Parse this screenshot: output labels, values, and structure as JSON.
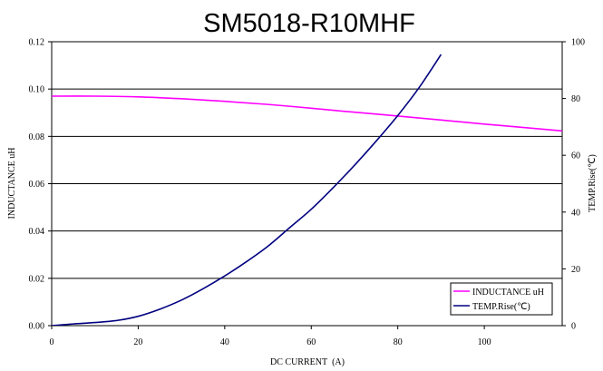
{
  "chart_data": {
    "type": "line",
    "title": "SM5018-R10MHF",
    "xlabel": "DC CURRENT  (A)",
    "ylabel": "INDUCTANCE uH",
    "y2label": "TEMP.Rise(℃)",
    "xlim": [
      0,
      118
    ],
    "ylim": [
      0,
      0.12
    ],
    "y2lim": [
      0,
      100
    ],
    "x_ticks": [
      "0",
      "20",
      "40",
      "60",
      "80",
      "100"
    ],
    "y_ticks": [
      "0.00",
      "0.02",
      "0.04",
      "0.06",
      "0.08",
      "0.10",
      "0.12"
    ],
    "y2_ticks": [
      "0",
      "20",
      "40",
      "60",
      "80",
      "100"
    ],
    "grid": "horizontal",
    "legend_position": "bottom-right",
    "series": [
      {
        "name": "INDUCTANCE uH",
        "axis": "left",
        "color": "#ff00ff",
        "x": [
          0,
          10,
          20,
          30,
          40,
          50,
          60,
          70,
          80,
          90,
          100,
          110,
          118
        ],
        "y": [
          0.097,
          0.097,
          0.0967,
          0.0959,
          0.0948,
          0.0935,
          0.0919,
          0.0902,
          0.0886,
          0.0869,
          0.0852,
          0.0836,
          0.0823
        ]
      },
      {
        "name": "TEMP.Rise(℃)",
        "axis": "right",
        "color": "#000080",
        "x": [
          0,
          5,
          10,
          15,
          20,
          25,
          30,
          35,
          40,
          45,
          50,
          55,
          60,
          65,
          70,
          75,
          80,
          85,
          90
        ],
        "y": [
          0,
          0.6,
          1.1,
          1.8,
          3.3,
          5.8,
          9,
          13,
          17.5,
          22.5,
          28,
          34.5,
          41,
          48.5,
          56.5,
          65,
          74,
          84,
          95.5
        ]
      }
    ]
  }
}
